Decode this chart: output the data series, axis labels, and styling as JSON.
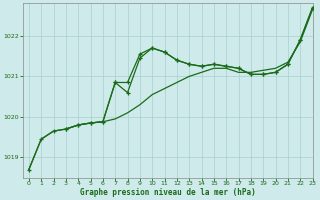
{
  "title": "Graphe pression niveau de la mer (hPa)",
  "background_color": "#ceeaea",
  "grid_color": "#a8d0d0",
  "line_color": "#1a6b1a",
  "xlim": [
    -0.5,
    23
  ],
  "ylim": [
    1018.5,
    1022.8
  ],
  "yticks": [
    1019,
    1020,
    1021,
    1022
  ],
  "xticks": [
    0,
    1,
    2,
    3,
    4,
    5,
    6,
    7,
    8,
    9,
    10,
    11,
    12,
    13,
    14,
    15,
    16,
    17,
    18,
    19,
    20,
    21,
    22,
    23
  ],
  "series1_x": [
    0,
    1,
    2,
    3,
    4,
    5,
    6,
    7,
    8,
    9,
    10,
    11,
    12,
    13,
    14,
    15,
    16,
    17,
    18,
    19,
    20,
    21,
    22,
    23
  ],
  "series1_y": [
    1018.7,
    1019.45,
    1019.65,
    1019.7,
    1019.8,
    1019.85,
    1019.88,
    1019.95,
    1020.1,
    1020.3,
    1020.55,
    1020.7,
    1020.85,
    1021.0,
    1021.1,
    1021.2,
    1021.2,
    1021.1,
    1021.1,
    1021.15,
    1021.2,
    1021.35,
    1021.85,
    1022.65
  ],
  "series2_x": [
    0,
    1,
    2,
    3,
    4,
    5,
    6,
    7,
    8,
    9,
    10,
    11,
    12,
    13,
    14,
    15,
    16,
    17,
    18,
    19,
    20,
    21,
    22,
    23
  ],
  "series2_y": [
    1018.7,
    1019.45,
    1019.65,
    1019.7,
    1019.8,
    1019.85,
    1019.88,
    1020.85,
    1020.85,
    1021.55,
    1021.7,
    1021.6,
    1021.4,
    1021.3,
    1021.25,
    1021.3,
    1021.25,
    1021.2,
    1021.05,
    1021.05,
    1021.1,
    1021.3,
    1021.9,
    1022.7
  ],
  "series3_x": [
    3,
    4,
    5,
    6,
    7,
    8,
    9,
    10,
    11,
    12,
    13,
    14,
    15,
    16,
    17,
    18,
    19,
    20,
    21,
    22,
    23
  ],
  "series3_y": [
    1019.7,
    1019.8,
    1019.85,
    1019.88,
    1020.85,
    1020.6,
    1021.45,
    1021.7,
    1021.6,
    1021.4,
    1021.3,
    1021.25,
    1021.3,
    1021.25,
    1021.2,
    1021.05,
    1021.05,
    1021.1,
    1021.3,
    1021.9,
    1022.7
  ]
}
